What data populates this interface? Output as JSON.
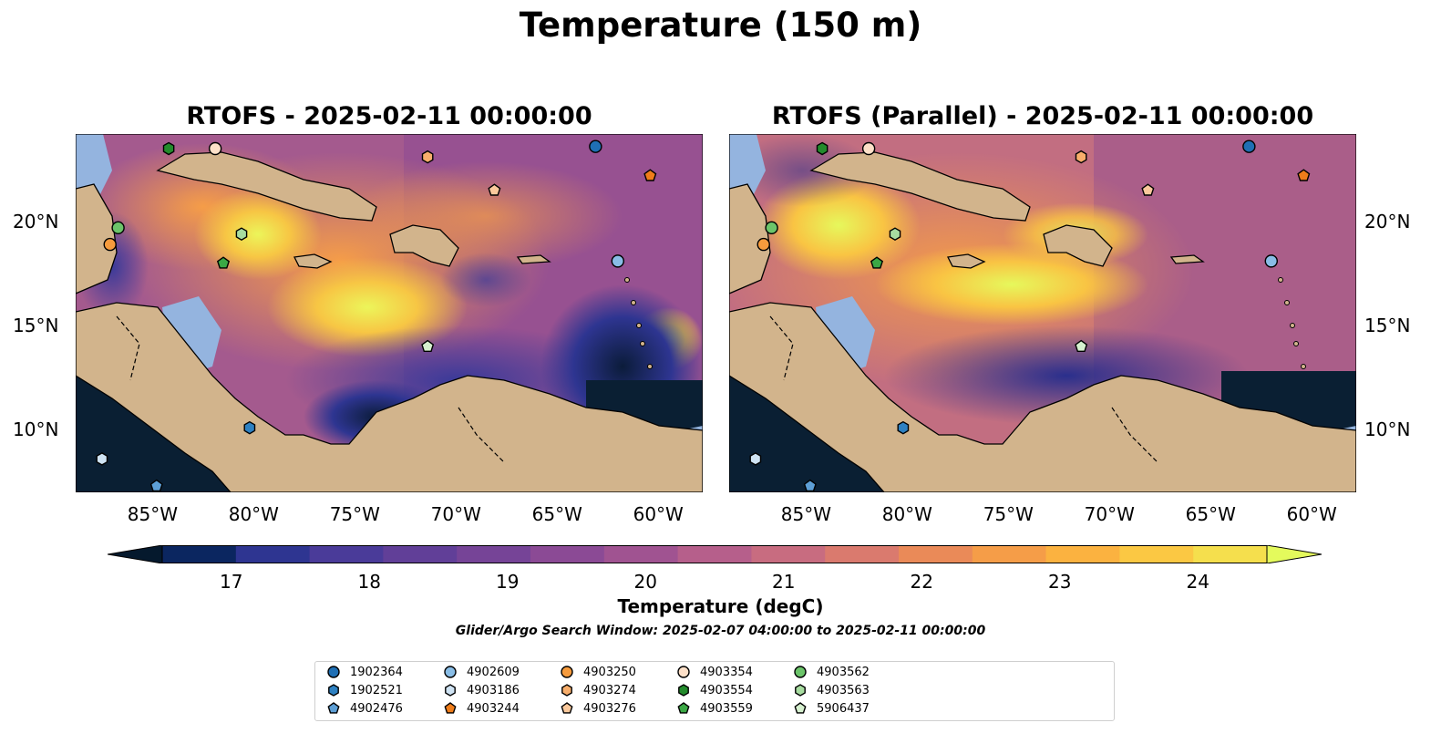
{
  "figure": {
    "suptitle": "Temperature (150 m)",
    "panel_left_title": "RTOFS - 2025-02-11 00:00:00",
    "panel_right_title": "RTOFS (Parallel) - 2025-02-11 00:00:00"
  },
  "axes": {
    "lon_labels": [
      "85°W",
      "80°W",
      "75°W",
      "70°W",
      "65°W",
      "60°W"
    ],
    "lat_labels": [
      "20°N",
      "15°N",
      "10°N"
    ],
    "lon_range": [
      -89,
      -58
    ],
    "lat_range": [
      7,
      24.2
    ]
  },
  "colorbar": {
    "title": "Temperature (degC)",
    "ticks": [
      "17",
      "18",
      "19",
      "20",
      "21",
      "22",
      "23",
      "24"
    ],
    "range": [
      16.5,
      24.5
    ],
    "colors": [
      "#05192d",
      "#0b2660",
      "#2e3591",
      "#4a3b99",
      "#613f98",
      "#764497",
      "#8b4a95",
      "#a05391",
      "#b65f8b",
      "#c86c80",
      "#da7a6e",
      "#ea8a58",
      "#f59d48",
      "#fbb240",
      "#fbc843",
      "#f5df4d",
      "#e4fa5c"
    ]
  },
  "search_window_text": "Glider/Argo Search Window: 2025-02-07 04:00:00 to 2025-02-11 00:00:00",
  "legend": [
    {
      "id": "1902364",
      "marker": "circle",
      "color": "#1f6fb4"
    },
    {
      "id": "1902521",
      "marker": "hexagon",
      "color": "#2e81c2"
    },
    {
      "id": "4902476",
      "marker": "pentagon",
      "color": "#5d9fd6"
    },
    {
      "id": "4902609",
      "marker": "circle",
      "color": "#89bde6"
    },
    {
      "id": "4903186",
      "marker": "hexagon",
      "color": "#cfe3f3"
    },
    {
      "id": "4903244",
      "marker": "pentagon",
      "color": "#ef7d1a"
    },
    {
      "id": "4903250",
      "marker": "circle",
      "color": "#f69b3d"
    },
    {
      "id": "4903274",
      "marker": "hexagon",
      "color": "#f8ae6b"
    },
    {
      "id": "4903276",
      "marker": "pentagon",
      "color": "#fbc99c"
    },
    {
      "id": "4903354",
      "marker": "circle",
      "color": "#fde0c8"
    },
    {
      "id": "4903554",
      "marker": "hexagon",
      "color": "#238b2c"
    },
    {
      "id": "4903559",
      "marker": "pentagon",
      "color": "#3ba845"
    },
    {
      "id": "4903562",
      "marker": "circle",
      "color": "#6cc46a"
    },
    {
      "id": "4903563",
      "marker": "hexagon",
      "color": "#a7dca0"
    },
    {
      "id": "5906437",
      "marker": "pentagon",
      "color": "#d6f0cf"
    }
  ],
  "floats": [
    {
      "id": "1902364",
      "lon": -63.3,
      "lat": 23.6
    },
    {
      "id": "1902521",
      "lon": -80.4,
      "lat": 10.1
    },
    {
      "id": "4902476",
      "lon": -85.0,
      "lat": 7.3
    },
    {
      "id": "4902609",
      "lon": -62.2,
      "lat": 18.1
    },
    {
      "id": "4903186",
      "lon": -87.7,
      "lat": 8.6
    },
    {
      "id": "4903244",
      "lon": -60.6,
      "lat": 22.2
    },
    {
      "id": "4903250",
      "lon": -87.3,
      "lat": 18.9
    },
    {
      "id": "4903274",
      "lon": -71.6,
      "lat": 23.1
    },
    {
      "id": "4903276",
      "lon": -68.3,
      "lat": 21.5
    },
    {
      "id": "4903354",
      "lon": -82.1,
      "lat": 23.5
    },
    {
      "id": "4903554",
      "lon": -84.4,
      "lat": 23.5
    },
    {
      "id": "4903559",
      "lon": -81.7,
      "lat": 18.0
    },
    {
      "id": "4903562",
      "lon": -86.9,
      "lat": 19.7
    },
    {
      "id": "4903563",
      "lon": -80.8,
      "lat": 19.4
    },
    {
      "id": "5906437",
      "lon": -71.6,
      "lat": 14.0
    }
  ]
}
